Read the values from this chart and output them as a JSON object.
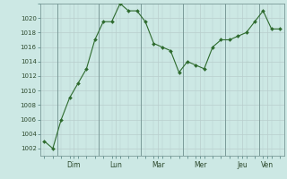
{
  "x_values": [
    0,
    1,
    2,
    3,
    4,
    5,
    6,
    7,
    8,
    9,
    10,
    11,
    12,
    13,
    14,
    15,
    16,
    17,
    18,
    19,
    20,
    21,
    22,
    23,
    24,
    25,
    26,
    27,
    28
  ],
  "y_values": [
    1003,
    1002,
    1006,
    1009,
    1011,
    1013,
    1017,
    1019.5,
    1019.5,
    1022,
    1021,
    1021,
    1019.5,
    1016.5,
    1016,
    1015.5,
    1012.5,
    1014,
    1013.5,
    1013,
    1016,
    1017,
    1017,
    1017.5,
    1018,
    1019.5,
    1021,
    1018.5,
    1018.5
  ],
  "line_color": "#2d6a2d",
  "marker_color": "#2d6a2d",
  "bg_color": "#cce8e4",
  "grid_color": "#b8cecc",
  "tick_label_color": "#2d4a2d",
  "ylim": [
    1001,
    1022
  ],
  "yticks": [
    1002,
    1004,
    1006,
    1008,
    1010,
    1012,
    1014,
    1016,
    1018,
    1020
  ],
  "day_labels": [
    "Dim",
    "Lun",
    "Mar",
    "Mer",
    "Jeu",
    "Ven"
  ],
  "day_positions": [
    3.5,
    8.5,
    13.5,
    18.5,
    23.5,
    26.5
  ],
  "vline_positions": [
    1.5,
    6.5,
    11.5,
    16.5,
    21.5,
    25.5
  ]
}
